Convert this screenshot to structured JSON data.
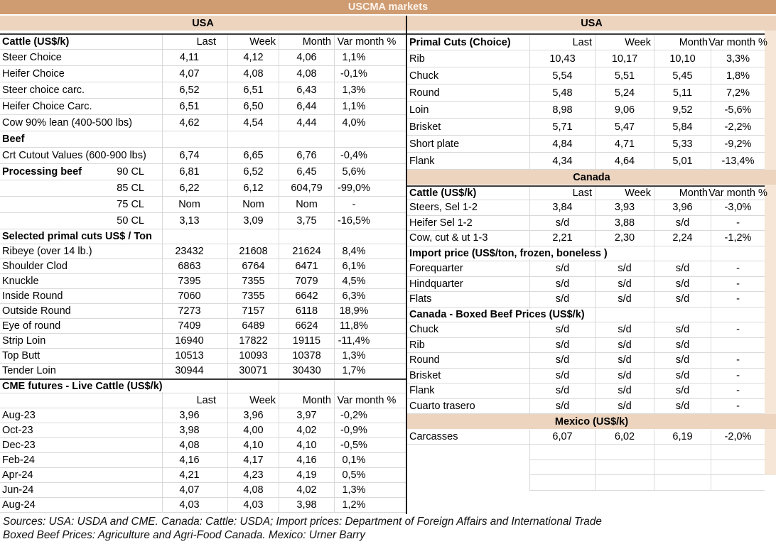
{
  "title": "USCMA markets",
  "columns": [
    "Last",
    "Week",
    "Month",
    "Var month %"
  ],
  "colors": {
    "title_bg": "#cf9c72",
    "title_text": "#fdf3ea",
    "band_bg": "#ecd4bf",
    "edge_strip": "#f5e6d8",
    "grid": "#d9d9d9",
    "dark": "#3d3d3d",
    "divider": "#141414"
  },
  "left": {
    "rows": [
      {
        "type": "band",
        "label": "USA"
      },
      {
        "type": "head",
        "label": "Cattle (US$/k)",
        "topline": true
      },
      {
        "type": "data",
        "label": "Steer Choice",
        "values": [
          "4,11",
          "4,12",
          "4,06",
          "1,1%"
        ]
      },
      {
        "type": "data",
        "label": "Heifer Choice",
        "values": [
          "4,07",
          "4,08",
          "4,08",
          "-0,1%"
        ]
      },
      {
        "type": "data",
        "label": "Steer choice carc.",
        "values": [
          "6,52",
          "6,51",
          "6,43",
          "1,3%"
        ]
      },
      {
        "type": "data",
        "label": "Heifer Choice Carc.",
        "values": [
          "6,51",
          "6,50",
          "6,44",
          "1,1%"
        ]
      },
      {
        "type": "data",
        "label": "Cow 90% lean (400-500 lbs)",
        "values": [
          "4,62",
          "4,54",
          "4,44",
          "4,0%"
        ]
      },
      {
        "type": "sec",
        "label": "Beef"
      },
      {
        "type": "data",
        "label": "Crt Cutout Values (600-900 lbs)",
        "values": [
          "6,74",
          "6,65",
          "6,76",
          "-0,4%"
        ]
      },
      {
        "type": "data",
        "label": "Processing beef",
        "bold": true,
        "sublabel": "90 CL",
        "values": [
          "6,81",
          "6,52",
          "6,45",
          "5,6%"
        ]
      },
      {
        "type": "data",
        "label": "",
        "sublabel": "85 CL",
        "values": [
          "6,22",
          "6,12",
          "604,79",
          "-99,0%"
        ]
      },
      {
        "type": "data",
        "label": "",
        "sublabel": "75 CL",
        "values": [
          "Nom",
          "Nom",
          "Nom",
          "-"
        ]
      },
      {
        "type": "data",
        "label": "",
        "sublabel": "50 CL",
        "values": [
          "3,13",
          "3,09",
          "3,75",
          "-16,5%"
        ]
      },
      {
        "type": "sec",
        "label": "Selected primal cuts US$ / Ton"
      },
      {
        "type": "data",
        "label": "Ribeye (over 14 lb.)",
        "values": [
          "23432",
          "21608",
          "21624",
          "8,4%"
        ]
      },
      {
        "type": "data",
        "label": "Shoulder Clod",
        "values": [
          "6863",
          "6764",
          "6471",
          "6,1%"
        ]
      },
      {
        "type": "data",
        "label": "Knuckle",
        "values": [
          "7395",
          "7355",
          "7079",
          "4,5%"
        ]
      },
      {
        "type": "data",
        "label": "Inside Round",
        "values": [
          "7060",
          "7355",
          "6642",
          "6,3%"
        ]
      },
      {
        "type": "data",
        "label": "Outside Round",
        "values": [
          "7273",
          "7157",
          "6118",
          "18,9%"
        ]
      },
      {
        "type": "data",
        "label": "Eye of round",
        "values": [
          "7409",
          "6489",
          "6624",
          "11,8%"
        ]
      },
      {
        "type": "data",
        "label": "Strip Loin",
        "values": [
          "16940",
          "17822",
          "19115",
          "-11,4%"
        ]
      },
      {
        "type": "data",
        "label": "Top Butt",
        "values": [
          "10513",
          "10093",
          "10378",
          "1,3%"
        ]
      },
      {
        "type": "data",
        "label": "Tender Loin",
        "values": [
          "30944",
          "30071",
          "30430",
          "1,7%"
        ]
      },
      {
        "type": "sec",
        "label": "CME futures - Live Cattle (US$/k)",
        "topline": true
      },
      {
        "type": "head",
        "label": ""
      },
      {
        "type": "data",
        "label": "Aug-23",
        "values": [
          "3,96",
          "3,96",
          "3,97",
          "-0,2%"
        ]
      },
      {
        "type": "data",
        "label": "Oct-23",
        "values": [
          "3,98",
          "4,00",
          "4,02",
          "-0,9%"
        ]
      },
      {
        "type": "data",
        "label": "Dec-23",
        "values": [
          "4,08",
          "4,10",
          "4,10",
          "-0,5%"
        ]
      },
      {
        "type": "data",
        "label": "Feb-24",
        "values": [
          "4,16",
          "4,17",
          "4,16",
          "0,1%"
        ]
      },
      {
        "type": "data",
        "label": "Apr-24",
        "values": [
          "4,21",
          "4,23",
          "4,19",
          "0,5%"
        ]
      },
      {
        "type": "data",
        "label": "Jun-24",
        "values": [
          "4,07",
          "4,08",
          "4,02",
          "1,3%"
        ]
      },
      {
        "type": "data",
        "label": "Aug-24",
        "values": [
          "4,03",
          "4,03",
          "3,98",
          "1,2%"
        ]
      }
    ]
  },
  "right": {
    "rows": [
      {
        "type": "band",
        "label": "USA"
      },
      {
        "type": "head",
        "label": "Primal Cuts (Choice)",
        "topline": true
      },
      {
        "type": "data",
        "label": "Rib",
        "values": [
          "10,43",
          "10,17",
          "10,10",
          "3,3%"
        ]
      },
      {
        "type": "data",
        "label": "Chuck",
        "values": [
          "5,54",
          "5,51",
          "5,45",
          "1,8%"
        ]
      },
      {
        "type": "data",
        "label": "Round",
        "values": [
          "5,48",
          "5,24",
          "5,11",
          "7,2%"
        ]
      },
      {
        "type": "data",
        "label": "Loin",
        "values": [
          "8,98",
          "9,06",
          "9,52",
          "-5,6%"
        ]
      },
      {
        "type": "data",
        "label": "Brisket",
        "values": [
          "5,71",
          "5,47",
          "5,84",
          "-2,2%"
        ]
      },
      {
        "type": "data",
        "label": "Short plate",
        "values": [
          "4,84",
          "4,71",
          "5,33",
          "-9,2%"
        ]
      },
      {
        "type": "data",
        "label": "Flank",
        "values": [
          "4,34",
          "4,64",
          "5,01",
          "-13,4%"
        ]
      },
      {
        "type": "band",
        "label": "Canada"
      },
      {
        "type": "head",
        "label": "Cattle (US$/k)",
        "topline": true
      },
      {
        "type": "data",
        "label": "Steers, Sel 1-2",
        "values": [
          "3,84",
          "3,93",
          "3,96",
          "-3,0%"
        ]
      },
      {
        "type": "data",
        "label": "Heifer Sel 1-2",
        "values": [
          "s/d",
          "3,88",
          "s/d",
          "-"
        ]
      },
      {
        "type": "data",
        "label": "Cow, cut & ut 1-3",
        "values": [
          "2,21",
          "2,30",
          "2,24",
          "-1,2%"
        ]
      },
      {
        "type": "sec",
        "label": "Import price (US$/ton, frozen, boneless )"
      },
      {
        "type": "data",
        "label": "Forequarter",
        "values": [
          "s/d",
          "s/d",
          "s/d",
          "-"
        ]
      },
      {
        "type": "data",
        "label": "Hindquarter",
        "values": [
          "s/d",
          "s/d",
          "s/d",
          "-"
        ]
      },
      {
        "type": "data",
        "label": "Flats",
        "values": [
          "s/d",
          "s/d",
          "s/d",
          "-"
        ]
      },
      {
        "type": "sec",
        "label": "Canada - Boxed Beef Prices (US$/k)"
      },
      {
        "type": "data",
        "label": "Chuck",
        "values": [
          "s/d",
          "s/d",
          "s/d",
          "-"
        ]
      },
      {
        "type": "data",
        "label": "Rib",
        "values": [
          "s/d",
          "s/d",
          "s/d",
          ""
        ]
      },
      {
        "type": "data",
        "label": "Round",
        "values": [
          "s/d",
          "s/d",
          "s/d",
          "-"
        ]
      },
      {
        "type": "data",
        "label": "Brisket",
        "values": [
          "s/d",
          "s/d",
          "s/d",
          "-"
        ]
      },
      {
        "type": "data",
        "label": "Flank",
        "values": [
          "s/d",
          "s/d",
          "s/d",
          "-"
        ]
      },
      {
        "type": "data",
        "label": "Cuarto trasero",
        "values": [
          "s/d",
          "s/d",
          "s/d",
          "-"
        ]
      },
      {
        "type": "band",
        "label": "Mexico (US$/k)"
      },
      {
        "type": "data",
        "label": "Carcasses",
        "values": [
          "6,07",
          "6,02",
          "6,19",
          "-2,0%"
        ]
      },
      {
        "type": "data",
        "label": "",
        "ghost": true,
        "values": [
          "",
          "",
          "",
          ""
        ]
      },
      {
        "type": "data",
        "label": "",
        "ghost": true,
        "values": [
          "",
          "",
          "",
          ""
        ]
      },
      {
        "type": "data",
        "label": "",
        "ghost": true,
        "values": [
          "",
          "",
          "",
          ""
        ]
      }
    ]
  },
  "sources": {
    "line1": "Sources: USA: USDA and CME. Canada: Cattle: USDA; Import prices: Department of Foreign Affairs and International Trade",
    "line2": "Boxed Beef Prices: Agriculture and Agri-Food Canada. Mexico: Urner Barry"
  }
}
